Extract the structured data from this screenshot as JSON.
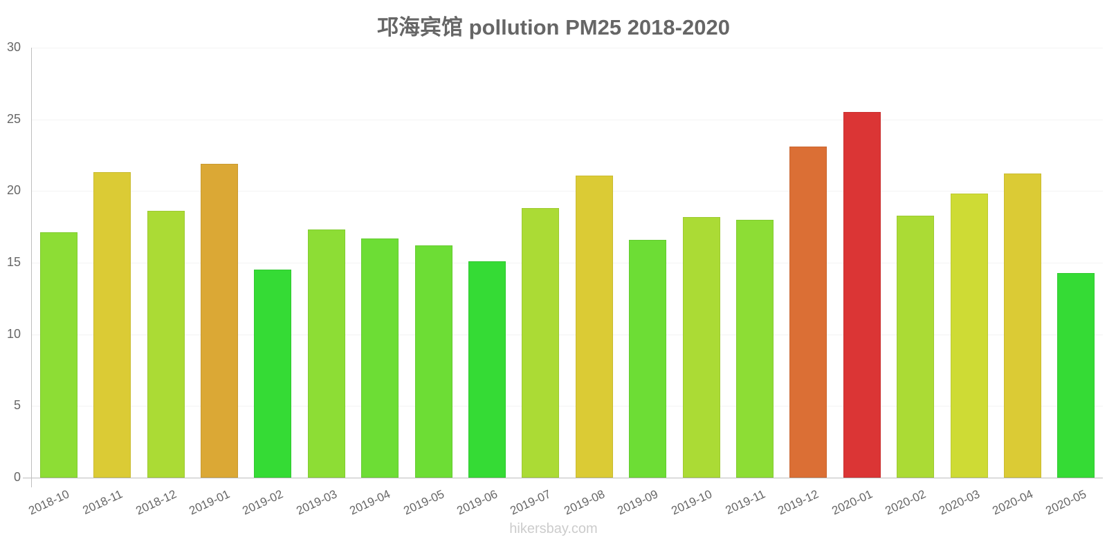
{
  "chart_data": {
    "type": "bar",
    "title": "邛海宾馆 pollution PM25 2018-2020",
    "xlabel": "",
    "ylabel": "",
    "ylim": [
      0,
      30
    ],
    "yticks": [
      0,
      5,
      10,
      15,
      20,
      25,
      30
    ],
    "grid": true,
    "legend": null,
    "categories": [
      "2018-10",
      "2018-11",
      "2018-12",
      "2019-01",
      "2019-02",
      "2019-03",
      "2019-04",
      "2019-05",
      "2019-06",
      "2019-07",
      "2019-08",
      "2019-09",
      "2019-10",
      "2019-11",
      "2019-12",
      "2020-01",
      "2020-02",
      "2020-03",
      "2020-04",
      "2020-05"
    ],
    "values": [
      17.1,
      21.3,
      18.6,
      21.9,
      14.5,
      17.3,
      16.7,
      16.2,
      15.1,
      18.8,
      21.1,
      16.6,
      18.2,
      18.0,
      23.1,
      25.5,
      18.3,
      19.8,
      21.2,
      14.3
    ],
    "colors": [
      "#8ddd35",
      "#dbcb35",
      "#abdb35",
      "#dba835",
      "#35db35",
      "#8ddd35",
      "#6ddd35",
      "#6ddd35",
      "#35db35",
      "#abdb35",
      "#dbcb35",
      "#6ddd35",
      "#abdb35",
      "#8ddd35",
      "#db6f35",
      "#db3535",
      "#abdb35",
      "#cedb35",
      "#dbcb35",
      "#35db35"
    ],
    "annotation": "hikersbay.com"
  },
  "title": "邛海宾馆 pollution PM25 2018-2020",
  "yticks": [
    "0",
    "5",
    "10",
    "15",
    "20",
    "25",
    "30"
  ],
  "footer": "hikersbay.com"
}
